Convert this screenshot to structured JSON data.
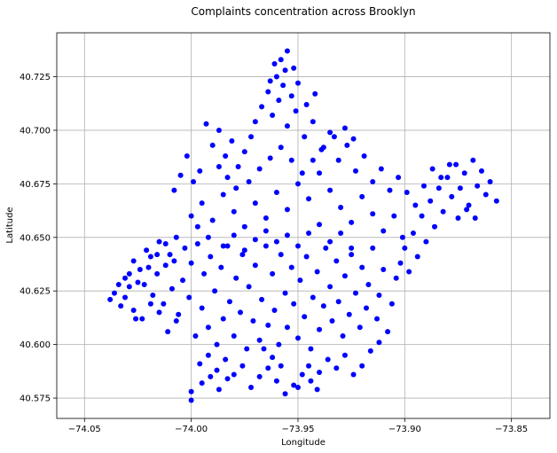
{
  "chart_data": {
    "type": "scatter",
    "title": "Complaints concentration across Brooklyn",
    "xlabel": "Longitude",
    "ylabel": "Latitude",
    "xlim": [
      -74.063,
      -73.832
    ],
    "ylim": [
      40.5655,
      40.7455
    ],
    "x_ticks": [
      -74.05,
      -74.0,
      -73.95,
      -73.9,
      -73.85
    ],
    "x_tick_labels": [
      "−74.05",
      "−74.00",
      "−73.95",
      "−73.90",
      "−73.85"
    ],
    "y_ticks": [
      40.575,
      40.6,
      40.625,
      40.65,
      40.675,
      40.7,
      40.725
    ],
    "y_tick_labels": [
      "40.575",
      "40.600",
      "40.625",
      "40.650",
      "40.675",
      "40.700",
      "40.725"
    ],
    "grid": true,
    "marker_color": "#0000ff",
    "points": [
      [
        -74.038,
        40.621
      ],
      [
        -74.036,
        40.624
      ],
      [
        -74.033,
        40.618
      ],
      [
        -74.031,
        40.631
      ],
      [
        -74.029,
        40.627
      ],
      [
        -74.027,
        40.639
      ],
      [
        -74.026,
        40.612
      ],
      [
        -74.024,
        40.635
      ],
      [
        -74.022,
        40.628
      ],
      [
        -74.021,
        40.644
      ],
      [
        -74.019,
        40.641
      ],
      [
        -74.018,
        40.623
      ],
      [
        -74.016,
        40.633
      ],
      [
        -74.015,
        40.648
      ],
      [
        -74.013,
        40.619
      ],
      [
        -74.012,
        40.637
      ],
      [
        -74.01,
        40.642
      ],
      [
        -74.009,
        40.626
      ],
      [
        -74.007,
        40.65
      ],
      [
        -74.006,
        40.614
      ],
      [
        -74.004,
        40.63
      ],
      [
        -74.003,
        40.645
      ],
      [
        -74.001,
        40.622
      ],
      [
        -74.0,
        40.638
      ],
      [
        -73.998,
        40.604
      ],
      [
        -73.997,
        40.647
      ],
      [
        -73.995,
        40.617
      ],
      [
        -73.994,
        40.633
      ],
      [
        -73.992,
        40.608
      ],
      [
        -73.991,
        40.641
      ],
      [
        -73.989,
        40.625
      ],
      [
        -73.988,
        40.6
      ],
      [
        -73.986,
        40.636
      ],
      [
        -73.985,
        40.612
      ],
      [
        -73.983,
        40.646
      ],
      [
        -73.982,
        40.62
      ],
      [
        -73.98,
        40.604
      ],
      [
        -73.979,
        40.631
      ],
      [
        -73.977,
        40.615
      ],
      [
        -73.976,
        40.642
      ],
      [
        -73.974,
        40.598
      ],
      [
        -73.973,
        40.627
      ],
      [
        -73.971,
        40.611
      ],
      [
        -73.97,
        40.637
      ],
      [
        -73.968,
        40.602
      ],
      [
        -73.967,
        40.621
      ],
      [
        -73.965,
        40.646
      ],
      [
        -73.964,
        40.609
      ],
      [
        -73.962,
        40.633
      ],
      [
        -73.961,
        40.616
      ],
      [
        -73.959,
        40.6
      ],
      [
        -73.958,
        40.642
      ],
      [
        -73.956,
        40.624
      ],
      [
        -73.955,
        40.608
      ],
      [
        -73.953,
        40.636
      ],
      [
        -73.952,
        40.619
      ],
      [
        -73.95,
        40.603
      ],
      [
        -73.949,
        40.63
      ],
      [
        -73.947,
        40.613
      ],
      [
        -73.946,
        40.641
      ],
      [
        -73.944,
        40.598
      ],
      [
        -73.943,
        40.622
      ],
      [
        -73.941,
        40.634
      ],
      [
        -73.94,
        40.607
      ],
      [
        -73.938,
        40.618
      ],
      [
        -73.937,
        40.645
      ],
      [
        -73.935,
        40.627
      ],
      [
        -73.934,
        40.611
      ],
      [
        -73.932,
        40.639
      ],
      [
        -73.931,
        40.62
      ],
      [
        -73.929,
        40.604
      ],
      [
        -73.928,
        40.632
      ],
      [
        -73.926,
        40.614
      ],
      [
        -73.925,
        40.642
      ],
      [
        -73.923,
        40.624
      ],
      [
        -73.921,
        40.608
      ],
      [
        -73.92,
        40.636
      ],
      [
        -73.918,
        40.617
      ],
      [
        -73.917,
        40.628
      ],
      [
        -73.915,
        40.645
      ],
      [
        -73.913,
        40.612
      ],
      [
        -73.912,
        40.623
      ],
      [
        -73.91,
        40.635
      ],
      [
        -73.908,
        40.606
      ],
      [
        -73.906,
        40.619
      ],
      [
        -73.904,
        40.631
      ],
      [
        -73.902,
        40.638
      ],
      [
        -73.9,
        40.645
      ],
      [
        -73.898,
        40.634
      ],
      [
        -73.896,
        40.652
      ],
      [
        -73.894,
        40.641
      ],
      [
        -73.892,
        40.66
      ],
      [
        -73.89,
        40.648
      ],
      [
        -73.888,
        40.667
      ],
      [
        -73.886,
        40.655
      ],
      [
        -73.884,
        40.673
      ],
      [
        -73.882,
        40.662
      ],
      [
        -73.88,
        40.678
      ],
      [
        -73.878,
        40.669
      ],
      [
        -73.876,
        40.684
      ],
      [
        -73.874,
        40.673
      ],
      [
        -73.872,
        40.68
      ],
      [
        -73.87,
        40.665
      ],
      [
        -73.868,
        40.686
      ],
      [
        -73.866,
        40.674
      ],
      [
        -73.864,
        40.681
      ],
      [
        -73.862,
        40.67
      ],
      [
        -73.86,
        40.676
      ],
      [
        -73.857,
        40.667
      ],
      [
        -73.887,
        40.682
      ],
      [
        -73.883,
        40.678
      ],
      [
        -73.879,
        40.684
      ],
      [
        -73.875,
        40.659
      ],
      [
        -73.871,
        40.663
      ],
      [
        -73.867,
        40.659
      ],
      [
        -73.891,
        40.674
      ],
      [
        -73.895,
        40.665
      ],
      [
        -73.899,
        40.671
      ],
      [
        -73.903,
        40.678
      ],
      [
        -73.907,
        40.672
      ],
      [
        -73.911,
        40.682
      ],
      [
        -73.915,
        40.676
      ],
      [
        -73.919,
        40.688
      ],
      [
        -73.923,
        40.681
      ],
      [
        -73.927,
        40.693
      ],
      [
        -73.931,
        40.686
      ],
      [
        -73.935,
        40.699
      ],
      [
        -73.939,
        40.691
      ],
      [
        -73.943,
        40.704
      ],
      [
        -73.947,
        40.697
      ],
      [
        -73.951,
        40.709
      ],
      [
        -73.955,
        40.702
      ],
      [
        -73.959,
        40.714
      ],
      [
        -73.962,
        40.707
      ],
      [
        -73.957,
        40.721
      ],
      [
        -73.953,
        40.716
      ],
      [
        -73.956,
        40.728
      ],
      [
        -73.958,
        40.733
      ],
      [
        -73.955,
        40.737
      ],
      [
        -73.96,
        40.725
      ],
      [
        -73.964,
        40.718
      ],
      [
        -73.967,
        40.711
      ],
      [
        -73.97,
        40.704
      ],
      [
        -73.972,
        40.697
      ],
      [
        -73.975,
        40.69
      ],
      [
        -73.978,
        40.683
      ],
      [
        -73.981,
        40.695
      ],
      [
        -73.984,
        40.688
      ],
      [
        -73.987,
        40.7
      ],
      [
        -73.99,
        40.693
      ],
      [
        -73.993,
        40.703
      ],
      [
        -73.996,
        40.681
      ],
      [
        -73.999,
        40.676
      ],
      [
        -74.002,
        40.688
      ],
      [
        -74.005,
        40.679
      ],
      [
        -74.008,
        40.672
      ],
      [
        -73.985,
        40.67
      ],
      [
        -73.98,
        40.662
      ],
      [
        -73.975,
        40.655
      ],
      [
        -73.97,
        40.666
      ],
      [
        -73.965,
        40.659
      ],
      [
        -73.96,
        40.671
      ],
      [
        -73.955,
        40.663
      ],
      [
        -73.95,
        40.675
      ],
      [
        -73.945,
        40.668
      ],
      [
        -73.94,
        40.68
      ],
      [
        -73.935,
        40.672
      ],
      [
        -73.93,
        40.664
      ],
      [
        -73.925,
        40.657
      ],
      [
        -73.92,
        40.669
      ],
      [
        -73.915,
        40.661
      ],
      [
        -73.91,
        40.653
      ],
      [
        -73.905,
        40.66
      ],
      [
        -73.901,
        40.65
      ],
      [
        -73.99,
        40.658
      ],
      [
        -73.995,
        40.666
      ],
      [
        -74.0,
        40.66
      ],
      [
        -73.992,
        40.65
      ],
      [
        -73.997,
        40.655
      ],
      [
        -73.945,
        40.652
      ],
      [
        -73.94,
        40.656
      ],
      [
        -73.935,
        40.648
      ],
      [
        -73.93,
        40.652
      ],
      [
        -73.925,
        40.645
      ],
      [
        -73.95,
        40.646
      ],
      [
        -73.955,
        40.651
      ],
      [
        -73.96,
        40.648
      ],
      [
        -73.965,
        40.653
      ],
      [
        -73.97,
        40.649
      ],
      [
        -73.975,
        40.644
      ],
      [
        -73.98,
        40.651
      ],
      [
        -73.985,
        40.646
      ],
      [
        -73.945,
        40.59
      ],
      [
        -73.948,
        40.586
      ],
      [
        -73.952,
        40.581
      ],
      [
        -73.956,
        40.577
      ],
      [
        -73.96,
        40.583
      ],
      [
        -73.964,
        40.589
      ],
      [
        -73.968,
        40.585
      ],
      [
        -73.972,
        40.58
      ],
      [
        -73.976,
        40.59
      ],
      [
        -73.98,
        40.586
      ],
      [
        -73.984,
        40.593
      ],
      [
        -73.988,
        40.588
      ],
      [
        -73.992,
        40.595
      ],
      [
        -73.996,
        40.591
      ],
      [
        -74.0,
        40.578
      ],
      [
        -74.0,
        40.574
      ],
      [
        -73.995,
        40.582
      ],
      [
        -73.991,
        40.585
      ],
      [
        -73.987,
        40.579
      ],
      [
        -73.983,
        40.584
      ],
      [
        -73.94,
        40.587
      ],
      [
        -73.936,
        40.593
      ],
      [
        -73.932,
        40.589
      ],
      [
        -73.928,
        40.595
      ],
      [
        -73.924,
        40.586
      ],
      [
        -73.92,
        40.59
      ],
      [
        -73.916,
        40.597
      ],
      [
        -73.912,
        40.601
      ],
      [
        -73.941,
        40.579
      ],
      [
        -73.944,
        40.583
      ],
      [
        -73.95,
        40.58
      ],
      [
        -73.958,
        40.59
      ],
      [
        -73.962,
        40.594
      ],
      [
        -73.966,
        40.598
      ],
      [
        -74.007,
        40.611
      ],
      [
        -74.011,
        40.606
      ],
      [
        -74.015,
        40.615
      ],
      [
        -74.019,
        40.619
      ],
      [
        -74.023,
        40.612
      ],
      [
        -74.027,
        40.616
      ],
      [
        -74.031,
        40.622
      ],
      [
        -74.034,
        40.628
      ],
      [
        -74.029,
        40.633
      ],
      [
        -74.025,
        40.629
      ],
      [
        -74.02,
        40.636
      ],
      [
        -74.016,
        40.642
      ],
      [
        -74.012,
        40.647
      ],
      [
        -74.008,
        40.639
      ],
      [
        -73.979,
        40.673
      ],
      [
        -73.983,
        40.678
      ],
      [
        -73.987,
        40.683
      ],
      [
        -73.973,
        40.676
      ],
      [
        -73.968,
        40.682
      ],
      [
        -73.963,
        40.687
      ],
      [
        -73.958,
        40.692
      ],
      [
        -73.953,
        40.686
      ],
      [
        -73.948,
        40.68
      ],
      [
        -73.943,
        40.686
      ],
      [
        -73.938,
        40.692
      ],
      [
        -73.933,
        40.697
      ],
      [
        -73.928,
        40.701
      ],
      [
        -73.924,
        40.696
      ],
      [
        -73.946,
        40.712
      ],
      [
        -73.942,
        40.717
      ],
      [
        -73.95,
        40.722
      ],
      [
        -73.952,
        40.729
      ],
      [
        -73.961,
        40.731
      ],
      [
        -73.963,
        40.723
      ]
    ]
  }
}
